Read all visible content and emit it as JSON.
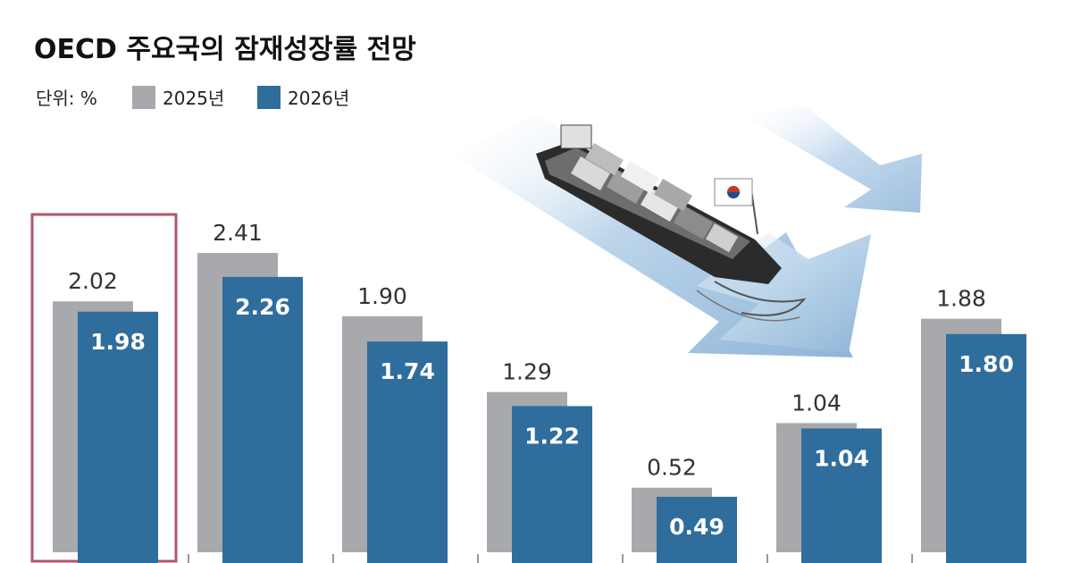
{
  "chart_data": {
    "type": "bar",
    "title": "OECD 주요국의 잠재성장률 전망",
    "unit_label": "단위: %",
    "categories": [
      "",
      "",
      "",
      "",
      "",
      "",
      ""
    ],
    "series": [
      {
        "name": "2025년",
        "values": [
          2.02,
          2.41,
          1.9,
          1.29,
          0.52,
          1.04,
          1.88
        ],
        "labels": [
          "2.02",
          "2.41",
          "1.90",
          "1.29",
          "0.52",
          "1.04",
          "1.88"
        ]
      },
      {
        "name": "2026년",
        "values": [
          1.98,
          2.26,
          1.74,
          1.22,
          0.49,
          1.04,
          1.8
        ],
        "labels": [
          "1.98",
          "2.26",
          "1.74",
          "1.22",
          "0.49",
          "1.04",
          "1.80"
        ]
      }
    ],
    "highlighted_index": 0,
    "colors": {
      "series_2025": "#a7a9ac",
      "series_2026": "#2f6e9c",
      "highlight_box": "#b0566a",
      "arrow": "#a8c8e2",
      "ship_hull": "#2b2b2b"
    },
    "legend_position": "top-left",
    "grid": false
  }
}
